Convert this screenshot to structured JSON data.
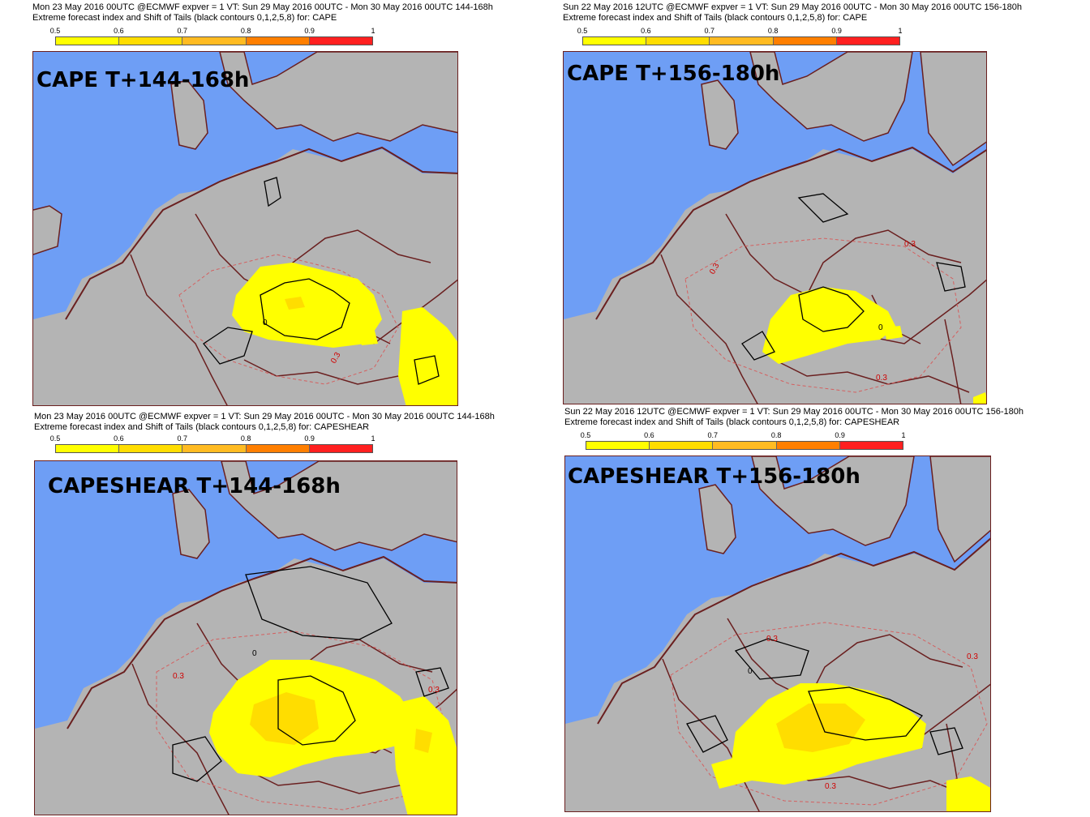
{
  "legend_ticks": [
    "0.5",
    "0.6",
    "0.7",
    "0.8",
    "0.9",
    "1"
  ],
  "legend_colors": [
    "#ffff00",
    "#ffdd00",
    "#ffbb22",
    "#ff7f00",
    "#ff2020"
  ],
  "colors": {
    "sea": "#6e9ef5",
    "land": "#b4b4b4",
    "border": "#6a1f1f",
    "contour": "#000000",
    "dashed": "#d46060"
  },
  "panels": [
    {
      "line1": "Mon 23 May 2016 00UTC @ECMWF expver = 1 VT: Sun 29 May 2016 00UTC - Mon 30 May 2016 00UTC  144-168h",
      "line2": "Extreme forecast index and Shift of Tails (black contours 0,1,2,5,8) for: CAPE",
      "label": "CAPE T+144-168h",
      "contour_labels": [
        "0",
        "0.3"
      ]
    },
    {
      "line1": "Sun 22 May 2016 12UTC @ECMWF expver = 1 VT: Sun 29 May 2016 00UTC - Mon 30 May 2016 00UTC  156-180h",
      "line2": "Extreme forecast index and Shift of Tails (black contours 0,1,2,5,8) for: CAPE",
      "label": "CAPE T+156-180h",
      "contour_labels": [
        "0.3",
        "0.3",
        "0.3",
        "0"
      ]
    },
    {
      "line1": "Mon 23 May 2016 00UTC @ECMWF expver = 1 VT: Sun 29 May 2016 00UTC - Mon 30 May 2016 00UTC  144-168h",
      "line2": "Extreme forecast index and Shift of Tails (black contours 0,1,2,5,8) for: CAPESHEAR",
      "label": "CAPESHEAR T+144-168h",
      "contour_labels": [
        "0.3",
        "0.3",
        "0"
      ]
    },
    {
      "line1": "Sun 22 May 2016 12UTC @ECMWF expver = 1 VT: Sun 29 May 2016 00UTC - Mon 30 May 2016 00UTC  156-180h",
      "line2": "Extreme forecast index and Shift of Tails (black contours 0,1,2,5,8) for: CAPESHEAR",
      "label": "CAPESHEAR T+156-180h",
      "contour_labels": [
        "0.3",
        "0.3",
        "0",
        "0.3"
      ]
    }
  ]
}
